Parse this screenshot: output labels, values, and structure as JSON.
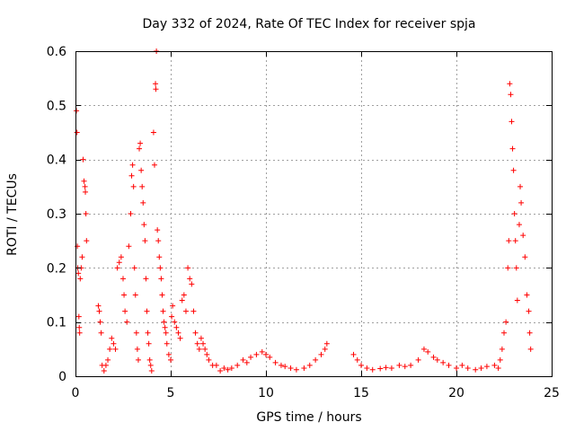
{
  "chart_data": {
    "type": "scatter",
    "title": "Day 332 of 2024, Rate Of TEC Index for receiver spja",
    "xlabel": "GPS time / hours",
    "ylabel": "ROTI / TECUs",
    "xlim": [
      0,
      25
    ],
    "ylim": [
      0,
      0.6
    ],
    "xticks": [
      0,
      5,
      10,
      15,
      20,
      25
    ],
    "yticks": [
      0,
      0.1,
      0.2,
      0.3,
      0.4,
      0.5,
      0.6
    ],
    "xtick_labels": [
      "0",
      "5",
      "10",
      "15",
      "20",
      "25"
    ],
    "ytick_labels": [
      "0",
      "0.1",
      "0.2",
      "0.3",
      "0.4",
      "0.5",
      "0.6"
    ],
    "grid": true,
    "marker": "+",
    "color": "#ff0000",
    "series": [
      {
        "name": "ROTI",
        "points": [
          [
            0.05,
            0.49
          ],
          [
            0.08,
            0.45
          ],
          [
            0.1,
            0.24
          ],
          [
            0.12,
            0.2
          ],
          [
            0.15,
            0.19
          ],
          [
            0.18,
            0.11
          ],
          [
            0.2,
            0.09
          ],
          [
            0.22,
            0.08
          ],
          [
            0.25,
            0.18
          ],
          [
            0.3,
            0.2
          ],
          [
            0.35,
            0.22
          ],
          [
            0.4,
            0.4
          ],
          [
            0.45,
            0.36
          ],
          [
            0.5,
            0.35
          ],
          [
            0.52,
            0.34
          ],
          [
            0.55,
            0.3
          ],
          [
            0.58,
            0.25
          ],
          [
            1.2,
            0.13
          ],
          [
            1.25,
            0.12
          ],
          [
            1.3,
            0.1
          ],
          [
            1.35,
            0.08
          ],
          [
            1.4,
            0.02
          ],
          [
            1.5,
            0.01
          ],
          [
            1.6,
            0.02
          ],
          [
            1.7,
            0.03
          ],
          [
            1.8,
            0.05
          ],
          [
            1.9,
            0.07
          ],
          [
            2.0,
            0.06
          ],
          [
            2.1,
            0.05
          ],
          [
            2.2,
            0.2
          ],
          [
            2.3,
            0.21
          ],
          [
            2.4,
            0.22
          ],
          [
            2.5,
            0.18
          ],
          [
            2.55,
            0.15
          ],
          [
            2.6,
            0.12
          ],
          [
            2.7,
            0.1
          ],
          [
            2.8,
            0.24
          ],
          [
            2.9,
            0.3
          ],
          [
            2.95,
            0.37
          ],
          [
            3.0,
            0.39
          ],
          [
            3.05,
            0.35
          ],
          [
            3.1,
            0.2
          ],
          [
            3.15,
            0.15
          ],
          [
            3.2,
            0.08
          ],
          [
            3.25,
            0.05
          ],
          [
            3.3,
            0.03
          ],
          [
            3.35,
            0.42
          ],
          [
            3.4,
            0.43
          ],
          [
            3.45,
            0.38
          ],
          [
            3.5,
            0.35
          ],
          [
            3.55,
            0.32
          ],
          [
            3.6,
            0.28
          ],
          [
            3.65,
            0.25
          ],
          [
            3.7,
            0.18
          ],
          [
            3.75,
            0.12
          ],
          [
            3.8,
            0.08
          ],
          [
            3.85,
            0.06
          ],
          [
            3.9,
            0.03
          ],
          [
            3.95,
            0.02
          ],
          [
            4.0,
            0.01
          ],
          [
            4.1,
            0.45
          ],
          [
            4.15,
            0.39
          ],
          [
            4.2,
            0.54
          ],
          [
            4.22,
            0.53
          ],
          [
            4.25,
            0.6
          ],
          [
            4.3,
            0.27
          ],
          [
            4.35,
            0.25
          ],
          [
            4.4,
            0.22
          ],
          [
            4.45,
            0.2
          ],
          [
            4.5,
            0.18
          ],
          [
            4.55,
            0.15
          ],
          [
            4.6,
            0.12
          ],
          [
            4.65,
            0.1
          ],
          [
            4.7,
            0.09
          ],
          [
            4.75,
            0.08
          ],
          [
            4.8,
            0.06
          ],
          [
            4.9,
            0.04
          ],
          [
            5.0,
            0.03
          ],
          [
            5.05,
            0.11
          ],
          [
            5.1,
            0.13
          ],
          [
            5.2,
            0.1
          ],
          [
            5.3,
            0.09
          ],
          [
            5.4,
            0.08
          ],
          [
            5.5,
            0.07
          ],
          [
            5.6,
            0.14
          ],
          [
            5.7,
            0.15
          ],
          [
            5.8,
            0.12
          ],
          [
            5.9,
            0.2
          ],
          [
            6.0,
            0.18
          ],
          [
            6.1,
            0.17
          ],
          [
            6.2,
            0.12
          ],
          [
            6.3,
            0.08
          ],
          [
            6.4,
            0.06
          ],
          [
            6.5,
            0.05
          ],
          [
            6.6,
            0.07
          ],
          [
            6.7,
            0.06
          ],
          [
            6.8,
            0.05
          ],
          [
            6.9,
            0.04
          ],
          [
            7.0,
            0.03
          ],
          [
            7.2,
            0.02
          ],
          [
            7.4,
            0.02
          ],
          [
            7.6,
            0.01
          ],
          [
            7.8,
            0.015
          ],
          [
            8.0,
            0.012
          ],
          [
            8.2,
            0.015
          ],
          [
            8.5,
            0.02
          ],
          [
            8.8,
            0.03
          ],
          [
            9.0,
            0.025
          ],
          [
            9.2,
            0.035
          ],
          [
            9.5,
            0.04
          ],
          [
            9.8,
            0.045
          ],
          [
            10.0,
            0.04
          ],
          [
            10.2,
            0.035
          ],
          [
            10.5,
            0.025
          ],
          [
            10.8,
            0.02
          ],
          [
            11.0,
            0.018
          ],
          [
            11.3,
            0.015
          ],
          [
            11.6,
            0.012
          ],
          [
            12.0,
            0.015
          ],
          [
            12.3,
            0.02
          ],
          [
            12.6,
            0.03
          ],
          [
            12.9,
            0.04
          ],
          [
            13.1,
            0.05
          ],
          [
            13.2,
            0.06
          ],
          [
            14.6,
            0.04
          ],
          [
            14.8,
            0.03
          ],
          [
            15.0,
            0.02
          ],
          [
            15.3,
            0.015
          ],
          [
            15.6,
            0.012
          ],
          [
            16.0,
            0.014
          ],
          [
            16.3,
            0.016
          ],
          [
            16.6,
            0.015
          ],
          [
            17.0,
            0.02
          ],
          [
            17.3,
            0.018
          ],
          [
            17.6,
            0.02
          ],
          [
            18.0,
            0.03
          ],
          [
            18.3,
            0.05
          ],
          [
            18.5,
            0.045
          ],
          [
            18.8,
            0.035
          ],
          [
            19.0,
            0.03
          ],
          [
            19.3,
            0.025
          ],
          [
            19.6,
            0.02
          ],
          [
            20.0,
            0.015
          ],
          [
            20.3,
            0.02
          ],
          [
            20.6,
            0.015
          ],
          [
            21.0,
            0.012
          ],
          [
            21.3,
            0.015
          ],
          [
            21.6,
            0.018
          ],
          [
            22.0,
            0.02
          ],
          [
            22.2,
            0.015
          ],
          [
            22.3,
            0.03
          ],
          [
            22.4,
            0.05
          ],
          [
            22.5,
            0.08
          ],
          [
            22.6,
            0.1
          ],
          [
            22.7,
            0.2
          ],
          [
            22.75,
            0.25
          ],
          [
            22.8,
            0.54
          ],
          [
            22.85,
            0.52
          ],
          [
            22.9,
            0.47
          ],
          [
            22.95,
            0.42
          ],
          [
            23.0,
            0.38
          ],
          [
            23.05,
            0.3
          ],
          [
            23.1,
            0.25
          ],
          [
            23.15,
            0.2
          ],
          [
            23.2,
            0.14
          ],
          [
            23.3,
            0.28
          ],
          [
            23.35,
            0.35
          ],
          [
            23.4,
            0.32
          ],
          [
            23.5,
            0.26
          ],
          [
            23.6,
            0.22
          ],
          [
            23.7,
            0.15
          ],
          [
            23.8,
            0.12
          ],
          [
            23.85,
            0.08
          ],
          [
            23.9,
            0.05
          ]
        ]
      }
    ]
  }
}
